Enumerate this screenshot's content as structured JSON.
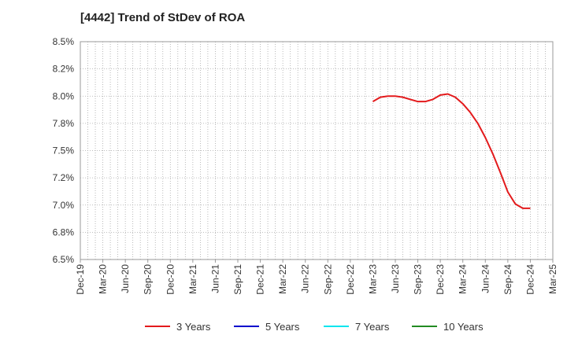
{
  "chart_data": {
    "type": "line",
    "title": "[4442]  Trend of StDev of ROA",
    "xlabel": "",
    "ylabel": "",
    "ylim": [
      6.5,
      8.5
    ],
    "yticks": [
      6.5,
      6.75,
      7.0,
      7.25,
      7.5,
      7.75,
      8.0,
      8.25,
      8.5
    ],
    "ytick_labels": [
      "6.5%",
      "6.8%",
      "7.0%",
      "7.2%",
      "7.5%",
      "7.8%",
      "8.0%",
      "8.2%",
      "8.5%"
    ],
    "xtick_labels": [
      "Dec-19",
      "Mar-20",
      "Jun-20",
      "Sep-20",
      "Dec-20",
      "Mar-21",
      "Jun-21",
      "Sep-21",
      "Dec-21",
      "Mar-22",
      "Jun-22",
      "Sep-22",
      "Dec-22",
      "Mar-23",
      "Jun-23",
      "Sep-23",
      "Dec-23",
      "Mar-24",
      "Jun-24",
      "Sep-24",
      "Dec-24",
      "Mar-25"
    ],
    "grid": true,
    "legend_position": "bottom",
    "series": [
      {
        "name": "3 Years",
        "color": "#e31a1c",
        "x": [
          "Mar-23",
          "Apr-23",
          "May-23",
          "Jun-23",
          "Jul-23",
          "Aug-23",
          "Sep-23",
          "Oct-23",
          "Nov-23",
          "Dec-23",
          "Jan-24",
          "Feb-24",
          "Mar-24",
          "Apr-24",
          "May-24",
          "Jun-24",
          "Jul-24",
          "Aug-24",
          "Sep-24",
          "Oct-24",
          "Nov-24",
          "Dec-24"
        ],
        "values": [
          7.95,
          7.99,
          8.0,
          8.0,
          7.99,
          7.97,
          7.95,
          7.95,
          7.97,
          8.01,
          8.02,
          7.99,
          7.93,
          7.85,
          7.75,
          7.62,
          7.47,
          7.3,
          7.12,
          7.01,
          6.97,
          6.97
        ]
      },
      {
        "name": "5 Years",
        "color": "#0000cc",
        "x": [],
        "values": []
      },
      {
        "name": "7 Years",
        "color": "#00e5ee",
        "x": [],
        "values": []
      },
      {
        "name": "10 Years",
        "color": "#228b22",
        "x": [],
        "values": []
      }
    ]
  }
}
